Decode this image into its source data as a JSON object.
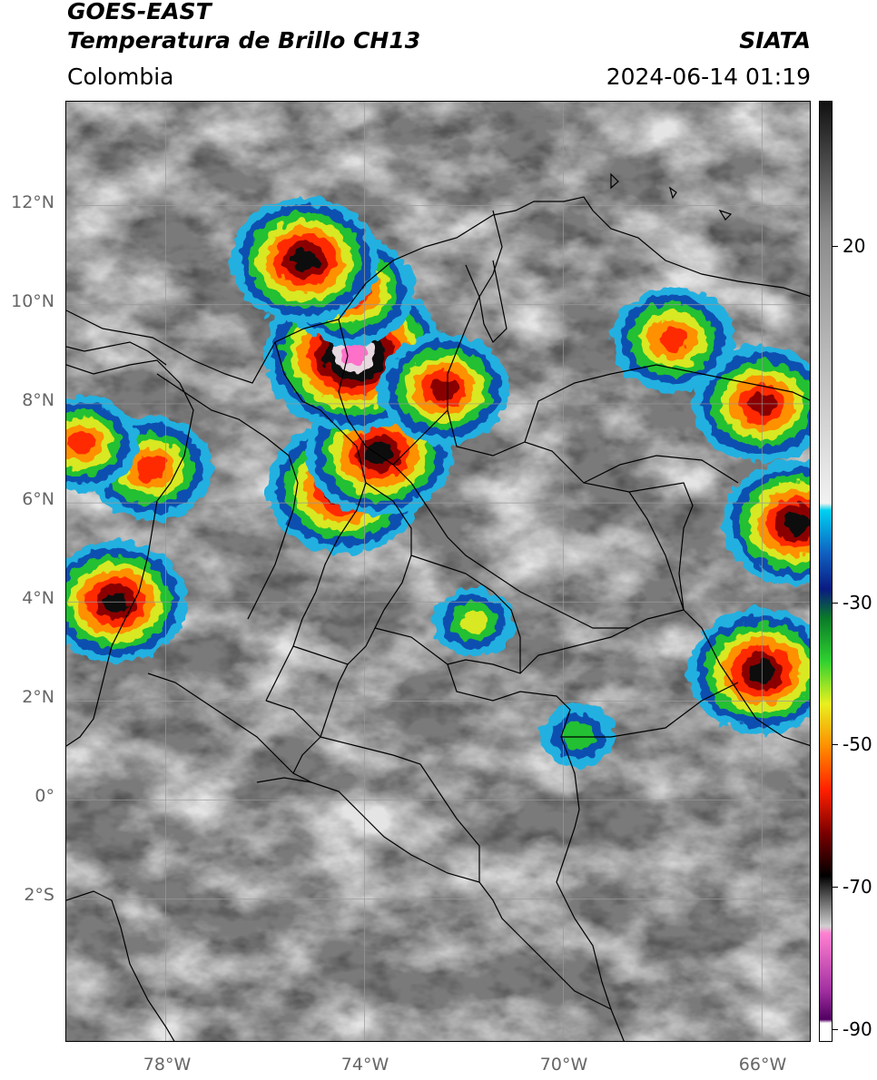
{
  "header": {
    "satellite": "GOES-EAST",
    "product": "Temperatura de Brillo CH13",
    "institution": "SIATA",
    "region": "Colombia",
    "timestamp": "2024-06-14 01:19"
  },
  "map": {
    "lat_labels": [
      "12°N",
      "10°N",
      "8°N",
      "6°N",
      "4°N",
      "2°N",
      "0°",
      "2°S"
    ],
    "lon_labels": [
      "78°W",
      "74°W",
      "70°W",
      "66°W"
    ],
    "extent": {
      "lon_min": -80,
      "lon_max": -65,
      "lat_min": -4.9,
      "lat_max": 14.1
    },
    "grid": true,
    "background": "grayscale cloud-top brightness temperature imagery",
    "convective_cells": [
      {
        "lon": -79,
        "lat": 4.0,
        "min_temp_c": -70
      },
      {
        "lon": -74.4,
        "lat": 6.3,
        "min_temp_c": -75
      },
      {
        "lon": -73.7,
        "lat": 7.0,
        "min_temp_c": -72
      },
      {
        "lon": -74.2,
        "lat": 9.0,
        "min_temp_c": -85
      },
      {
        "lon": -66,
        "lat": 2.6,
        "min_temp_c": -72
      },
      {
        "lon": -65.3,
        "lat": 5.6,
        "min_temp_c": -72
      },
      {
        "lon": -72.4,
        "lat": 8.3,
        "min_temp_c": -65
      },
      {
        "lon": -66,
        "lat": 8.0,
        "min_temp_c": -68
      },
      {
        "lon": -78.3,
        "lat": 6.7,
        "min_temp_c": -62
      },
      {
        "lon": -71.8,
        "lat": 3.6,
        "min_temp_c": -45
      },
      {
        "lon": -69.7,
        "lat": 1.3,
        "min_temp_c": -42
      },
      {
        "lon": -74.3,
        "lat": 10.3,
        "min_temp_c": -65
      },
      {
        "lon": -75.2,
        "lat": 10.9,
        "min_temp_c": -72
      },
      {
        "lon": -67.8,
        "lat": 9.3,
        "min_temp_c": -62
      },
      {
        "lon": -79.7,
        "lat": 7.2,
        "min_temp_c": -58
      }
    ]
  },
  "colorbar": {
    "ticks": [
      "20",
      "-30",
      "-50",
      "-70",
      "-90"
    ],
    "tick_values": [
      20,
      -30,
      -50,
      -70,
      -90
    ],
    "range": [
      -93,
      38
    ],
    "stops": [
      {
        "value": 38,
        "color": "#111111"
      },
      {
        "value": 20,
        "color": "#8a8a8a"
      },
      {
        "value": -18,
        "color": "#f2f2f2"
      },
      {
        "value": -19,
        "color": "#00d0f0"
      },
      {
        "value": -25,
        "color": "#1060c0"
      },
      {
        "value": -30,
        "color": "#0a1a80"
      },
      {
        "value": -34,
        "color": "#0a7a2a"
      },
      {
        "value": -40,
        "color": "#30d030"
      },
      {
        "value": -46,
        "color": "#e8f020"
      },
      {
        "value": -52,
        "color": "#ff8c00"
      },
      {
        "value": -58,
        "color": "#ff2000"
      },
      {
        "value": -64,
        "color": "#7a0000"
      },
      {
        "value": -70,
        "color": "#000000"
      },
      {
        "value": -77,
        "color": "#d0d0d0"
      },
      {
        "value": -78,
        "color": "#ff80d0"
      },
      {
        "value": -86,
        "color": "#a030a0"
      },
      {
        "value": -90,
        "color": "#500060"
      },
      {
        "value": -90.5,
        "color": "#ffffff"
      }
    ]
  }
}
